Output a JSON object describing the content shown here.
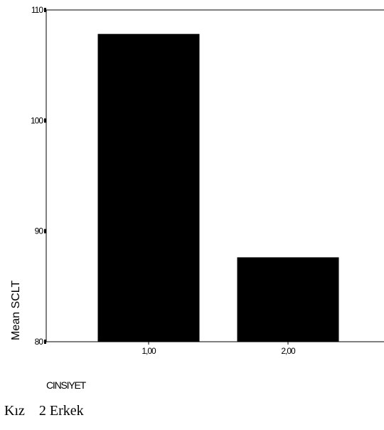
{
  "chart_data": {
    "type": "bar",
    "categories": [
      "1,00",
      "2,00"
    ],
    "values": [
      107.8,
      87.6
    ],
    "ylabel": "Mean SCLT",
    "xlabel": "CINSIYET",
    "ylim": [
      80,
      110
    ],
    "yticks": [
      "80",
      "90",
      "100",
      "110"
    ],
    "bar_color": "#000000",
    "grid": false
  },
  "footnote": "Kız    2 Erkek"
}
